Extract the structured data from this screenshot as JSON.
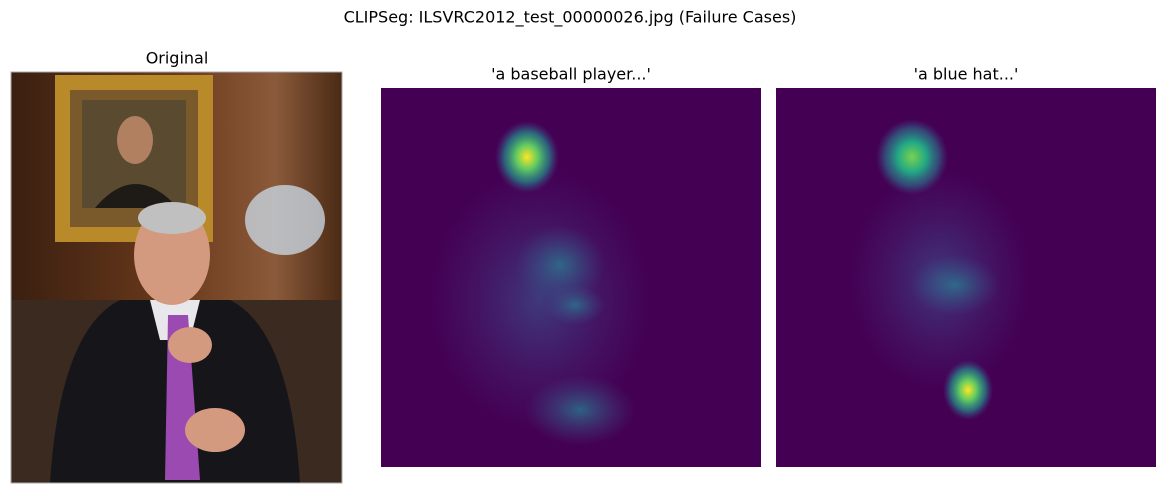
{
  "figure": {
    "title": "CLIPSeg: ILSVRC2012_test_00000026.jpg (Failure Cases)",
    "panels": [
      {
        "title": "Original"
      },
      {
        "title": "'a baseball player...'"
      },
      {
        "title": "'a blue hat...'"
      }
    ]
  }
}
